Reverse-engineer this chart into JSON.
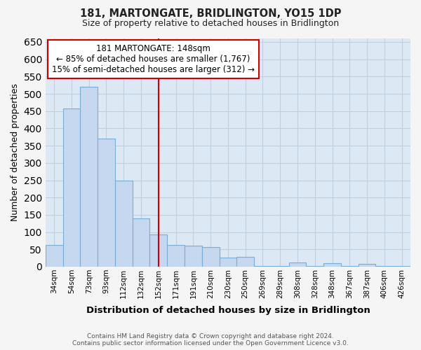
{
  "title": "181, MARTONGATE, BRIDLINGTON, YO15 1DP",
  "subtitle": "Size of property relative to detached houses in Bridlington",
  "xlabel": "Distribution of detached houses by size in Bridlington",
  "ylabel": "Number of detached properties",
  "footer_line1": "Contains HM Land Registry data © Crown copyright and database right 2024.",
  "footer_line2": "Contains public sector information licensed under the Open Government Licence v3.0.",
  "categories": [
    "34sqm",
    "54sqm",
    "73sqm",
    "93sqm",
    "112sqm",
    "132sqm",
    "152sqm",
    "171sqm",
    "191sqm",
    "210sqm",
    "230sqm",
    "250sqm",
    "269sqm",
    "289sqm",
    "308sqm",
    "328sqm",
    "348sqm",
    "367sqm",
    "387sqm",
    "406sqm",
    "426sqm"
  ],
  "values": [
    62,
    458,
    520,
    370,
    248,
    140,
    93,
    62,
    60,
    57,
    27,
    28,
    3,
    3,
    13,
    3,
    10,
    3,
    8,
    3,
    3
  ],
  "bar_color": "#c5d8ef",
  "bar_edge_color": "#7aadd4",
  "marker_index": 6,
  "marker_color": "#cc0000",
  "annotation_title": "181 MARTONGATE: 148sqm",
  "annotation_line1": "← 85% of detached houses are smaller (1,767)",
  "annotation_line2": "15% of semi-detached houses are larger (312) →",
  "annotation_box_color": "#ffffff",
  "annotation_box_edge": "#cc0000",
  "ylim": [
    0,
    660
  ],
  "yticks": [
    0,
    50,
    100,
    150,
    200,
    250,
    300,
    350,
    400,
    450,
    500,
    550,
    600,
    650
  ],
  "grid_color": "#c0cfe0",
  "bg_color": "#dce8f4",
  "fig_bg_color": "#f5f5f5"
}
